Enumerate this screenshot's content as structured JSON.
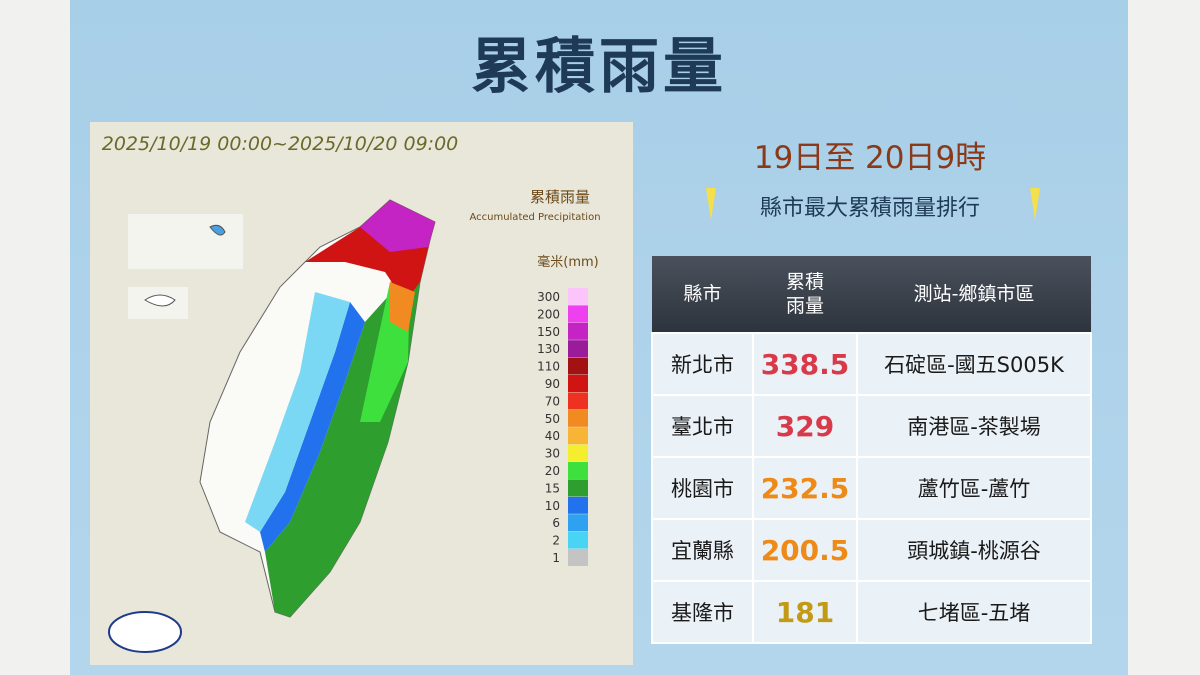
{
  "title": "累積雨量",
  "map": {
    "time_range": "2025/10/19 00:00~2025/10/20 09:00",
    "legend_title": "累積雨量",
    "legend_subtitle": "Accumulated Precipitation",
    "unit": "毫米(mm)",
    "scale": [
      {
        "label": "300",
        "color": "#fbc4fb"
      },
      {
        "label": "200",
        "color": "#ee40ee"
      },
      {
        "label": "150",
        "color": "#c424c4"
      },
      {
        "label": "130",
        "color": "#9a1c9a"
      },
      {
        "label": "110",
        "color": "#a21212"
      },
      {
        "label": "90",
        "color": "#d01414"
      },
      {
        "label": "70",
        "color": "#ee3222"
      },
      {
        "label": "50",
        "color": "#f28a22"
      },
      {
        "label": "40",
        "color": "#f8b434"
      },
      {
        "label": "30",
        "color": "#f4ee2e"
      },
      {
        "label": "20",
        "color": "#3ee03e"
      },
      {
        "label": "15",
        "color": "#2e9e2e"
      },
      {
        "label": "10",
        "color": "#2272ee"
      },
      {
        "label": "6",
        "color": "#2ea2f0"
      },
      {
        "label": "2",
        "color": "#48d4f2"
      },
      {
        "label": "1",
        "color": "#c4c4c4"
      }
    ]
  },
  "ranking": {
    "period": "19日至 20日9時",
    "subtitle": "縣市最大累積雨量排行",
    "header": [
      "縣市",
      "累積\n雨量",
      "測站-鄉鎮市區"
    ],
    "rows": [
      {
        "county": "新北市",
        "amount": 338.5,
        "station": "石碇區-國五S005K",
        "color": "#d93a4a"
      },
      {
        "county": "臺北市",
        "amount": 329,
        "station": "南港區-茶製場",
        "color": "#d93a4a"
      },
      {
        "county": "桃園市",
        "amount": 232.5,
        "station": "蘆竹區-蘆竹",
        "color": "#ee8a18"
      },
      {
        "county": "宜蘭縣",
        "amount": 200.5,
        "station": "頭城鎮-桃源谷",
        "color": "#ee8a18"
      },
      {
        "county": "基隆市",
        "amount": 181,
        "station": "七堵區-五堵",
        "color": "#c29a16"
      }
    ]
  }
}
